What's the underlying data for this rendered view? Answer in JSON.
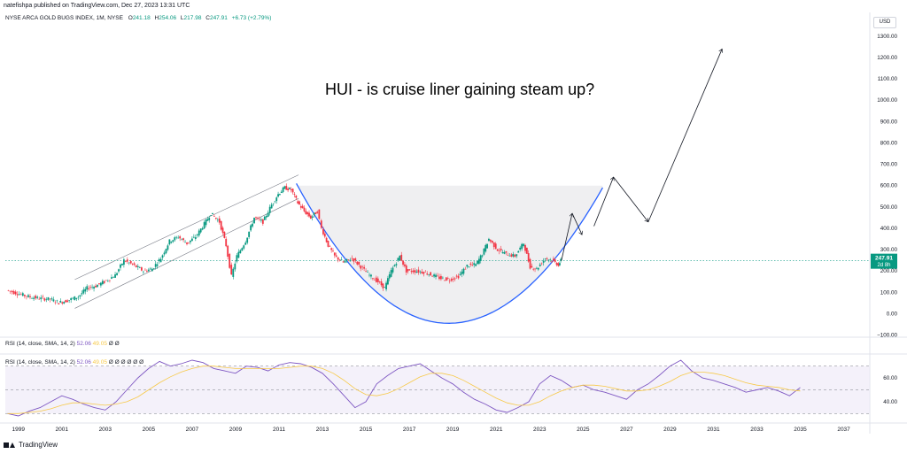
{
  "header": {
    "publisher_line": "natefishpa published on TradingView.com, Dec 27, 2023 13:31 UTC"
  },
  "symbol": {
    "name": "NYSE ARCA GOLD BUGS INDEX, 1M, NYSE",
    "o_label": "O",
    "o_value": "241.18",
    "h_label": "H",
    "h_value": "254.06",
    "l_label": "L",
    "l_value": "217.98",
    "c_label": "C",
    "c_value": "247.91",
    "change": "+6.73 (+2.79%)"
  },
  "currency": "USD",
  "price_tag": {
    "value": "247.91",
    "countdown": "2d 8h",
    "color": "#089981"
  },
  "annotation": "HUI - is cruise liner gaining steam up?",
  "rsi_legend_1": {
    "label": "RSI (14, close, SMA, 14, 2)",
    "v1": "52.06",
    "v2": "49.05",
    "extra": "Ø  Ø"
  },
  "rsi_legend_2": {
    "label": "RSI (14, close, SMA, 14, 2)",
    "v1": "52.06",
    "v2": "49.05",
    "extra": "Ø  Ø  Ø  Ø  Ø  Ø"
  },
  "footer": {
    "brand": "TradingView"
  },
  "colors": {
    "up": "#089981",
    "down": "#f23645",
    "rsi": "#7e57c2",
    "rsi_ma": "#f7c948",
    "cup": "#2962ff",
    "band": "#ede7f6"
  },
  "chart_data": [
    {
      "type": "candlestick",
      "title": "NYSE ARCA GOLD BUGS INDEX, 1M, NYSE",
      "y_ticks": [
        "1300.00",
        "1200.00",
        "1100.00",
        "1000.00",
        "900.00",
        "800.00",
        "700.00",
        "600.00",
        "500.00",
        "400.00",
        "300.00",
        "200.00",
        "100.00",
        "0.00",
        "−100.00"
      ],
      "y_tick_values": [
        1300,
        1200,
        1100,
        1000,
        900,
        800,
        700,
        600,
        500,
        400,
        300,
        200,
        100,
        0,
        -100
      ],
      "x_ticks": [
        "1999",
        "2001",
        "2003",
        "2005",
        "2007",
        "2009",
        "2011",
        "2013",
        "2015",
        "2017",
        "2019",
        "2021",
        "2023",
        "2025",
        "2027",
        "2029",
        "2031",
        "2033",
        "2035",
        "2037"
      ],
      "x_tick_values": [
        1999,
        2001,
        2003,
        2005,
        2007,
        2009,
        2011,
        2013,
        2015,
        2017,
        2019,
        2021,
        2023,
        2025,
        2027,
        2029,
        2031,
        2033,
        2035,
        2037
      ],
      "ylim": [
        -110,
        1345
      ],
      "xlim": [
        1998.4,
        2038.2
      ],
      "price_path": [
        [
          1998.5,
          110
        ],
        [
          1999.0,
          95
        ],
        [
          1999.5,
          80
        ],
        [
          2000.0,
          72
        ],
        [
          2000.5,
          68
        ],
        [
          2000.9,
          52
        ],
        [
          2001.3,
          62
        ],
        [
          2001.8,
          80
        ],
        [
          2002.2,
          120
        ],
        [
          2002.6,
          130
        ],
        [
          2003.0,
          150
        ],
        [
          2003.5,
          180
        ],
        [
          2003.9,
          250
        ],
        [
          2004.3,
          230
        ],
        [
          2004.8,
          200
        ],
        [
          2005.2,
          210
        ],
        [
          2005.6,
          260
        ],
        [
          2006.0,
          340
        ],
        [
          2006.4,
          360
        ],
        [
          2006.8,
          330
        ],
        [
          2007.2,
          360
        ],
        [
          2007.6,
          420
        ],
        [
          2007.9,
          470
        ],
        [
          2008.3,
          430
        ],
        [
          2008.6,
          320
        ],
        [
          2008.85,
          175
        ],
        [
          2009.1,
          270
        ],
        [
          2009.5,
          340
        ],
        [
          2009.9,
          450
        ],
        [
          2010.3,
          430
        ],
        [
          2010.7,
          510
        ],
        [
          2011.0,
          560
        ],
        [
          2011.3,
          590
        ],
        [
          2011.6,
          580
        ],
        [
          2011.9,
          520
        ],
        [
          2012.2,
          480
        ],
        [
          2012.5,
          450
        ],
        [
          2012.8,
          480
        ],
        [
          2013.0,
          400
        ],
        [
          2013.3,
          320
        ],
        [
          2013.6,
          270
        ],
        [
          2014.0,
          240
        ],
        [
          2014.4,
          260
        ],
        [
          2014.8,
          220
        ],
        [
          2015.2,
          180
        ],
        [
          2015.6,
          150
        ],
        [
          2015.9,
          120
        ],
        [
          2016.2,
          200
        ],
        [
          2016.6,
          270
        ],
        [
          2016.9,
          200
        ],
        [
          2017.3,
          200
        ],
        [
          2017.7,
          195
        ],
        [
          2018.1,
          180
        ],
        [
          2018.5,
          165
        ],
        [
          2018.9,
          160
        ],
        [
          2019.3,
          175
        ],
        [
          2019.7,
          225
        ],
        [
          2020.1,
          230
        ],
        [
          2020.4,
          280
        ],
        [
          2020.7,
          350
        ],
        [
          2021.1,
          300
        ],
        [
          2021.5,
          280
        ],
        [
          2021.9,
          270
        ],
        [
          2022.3,
          330
        ],
        [
          2022.6,
          220
        ],
        [
          2022.9,
          210
        ],
        [
          2023.3,
          260
        ],
        [
          2023.6,
          250
        ],
        [
          2023.9,
          230
        ],
        [
          2024.0,
          247.91
        ]
      ],
      "horizontal_level": 247.91,
      "projection_arrows": [
        [
          [
            2024.0,
            248
          ],
          [
            2024.5,
            470
          ]
        ],
        [
          [
            2024.5,
            470
          ],
          [
            2024.95,
            370
          ]
        ],
        [
          [
            2025.5,
            410
          ],
          [
            2026.4,
            640
          ]
        ],
        [
          [
            2026.4,
            640
          ],
          [
            2028.0,
            430
          ]
        ],
        [
          [
            2028.0,
            430
          ],
          [
            2031.4,
            1240
          ]
        ]
      ],
      "cup_arc": {
        "start": [
          2011.8,
          610
        ],
        "bottom": [
          2018.8,
          -45
        ],
        "end": [
          2025.9,
          590
        ]
      },
      "cup_fill_top": 600,
      "rising_channel": {
        "upper": [
          [
            2001.6,
            160
          ],
          [
            2011.9,
            650
          ]
        ],
        "lower": [
          [
            2001.6,
            25
          ],
          [
            2011.9,
            540
          ]
        ]
      }
    },
    {
      "type": "line",
      "title": "RSI (14, close, SMA, 14, 2)",
      "y_ticks": [
        "60.00",
        "40.00"
      ],
      "y_tick_values": [
        60,
        40
      ],
      "band": [
        30,
        70
      ],
      "ylim": [
        25,
        78
      ],
      "series": [
        {
          "name": "RSI",
          "x_start": 1998.5,
          "x_step": 0.5,
          "values": [
            30,
            28,
            32,
            35,
            40,
            45,
            42,
            38,
            35,
            33,
            40,
            50,
            60,
            68,
            74,
            70,
            72,
            75,
            73,
            68,
            66,
            64,
            70,
            69,
            66,
            71,
            73,
            72,
            69,
            64,
            55,
            45,
            35,
            40,
            55,
            62,
            68,
            70,
            72,
            66,
            60,
            55,
            48,
            42,
            38,
            33,
            31,
            35,
            40,
            55,
            62,
            58,
            52,
            54,
            50,
            48,
            45,
            42,
            50,
            55,
            62,
            70,
            75,
            66,
            60,
            58,
            55,
            52,
            48,
            50,
            52,
            49,
            45,
            52
          ]
        },
        {
          "name": "RSI-based MA",
          "x_start": 1998.5,
          "x_step": 0.5,
          "values": [
            30,
            30,
            31,
            32,
            34,
            37,
            39,
            39,
            38,
            37,
            38,
            40,
            44,
            50,
            56,
            61,
            65,
            68,
            70,
            70,
            69,
            68,
            68,
            68,
            68,
            68,
            69,
            70,
            70,
            68,
            64,
            58,
            51,
            46,
            45,
            47,
            51,
            56,
            61,
            64,
            64,
            62,
            58,
            53,
            48,
            43,
            39,
            37,
            37,
            40,
            45,
            49,
            52,
            54,
            54,
            53,
            51,
            49,
            49,
            50,
            53,
            57,
            62,
            65,
            65,
            64,
            62,
            59,
            56,
            54,
            53,
            52,
            50,
            49
          ]
        }
      ]
    }
  ]
}
